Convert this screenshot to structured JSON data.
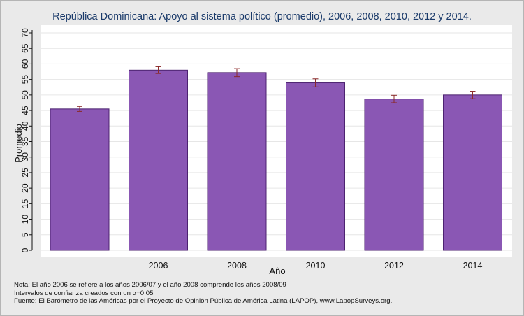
{
  "chart_data": {
    "type": "bar",
    "title": "República Dominicana: Apoyo al sistema político (promedio), 2006, 2008, 2010, 2012 y 2014.",
    "xlabel": "Año",
    "ylabel": "Promedio",
    "ylim": [
      0,
      70
    ],
    "yticks": [
      "0",
      "5",
      "10",
      "15",
      "20",
      "25",
      "30",
      "35",
      "40",
      "45",
      "50",
      "55",
      "60",
      "65",
      "70"
    ],
    "categories": [
      "",
      "2006",
      "2008",
      "2010",
      "2012",
      "2014"
    ],
    "values": [
      45.5,
      58.0,
      57.2,
      53.9,
      48.7,
      50.0
    ],
    "ci_low": [
      44.7,
      56.9,
      55.9,
      52.6,
      47.5,
      48.8
    ],
    "ci_high": [
      46.3,
      59.1,
      58.5,
      55.2,
      49.9,
      51.2
    ],
    "grid": true,
    "bar_color": "#8a57b4",
    "bar_edge_color": "#4c2270",
    "error_bar_color": "#8b2a2a"
  },
  "notes": [
    "Nota: El año 2006 se refiere a los años 2006/07 y el año 2008 comprende los años 2008/09",
    "Intervalos de confianza creados con un α=0.05",
    "Fuente: El Barómetro de las Américas por el Proyecto de Opinión Pública de América Latina (LAPOP), www.LapopSurveys.org."
  ]
}
